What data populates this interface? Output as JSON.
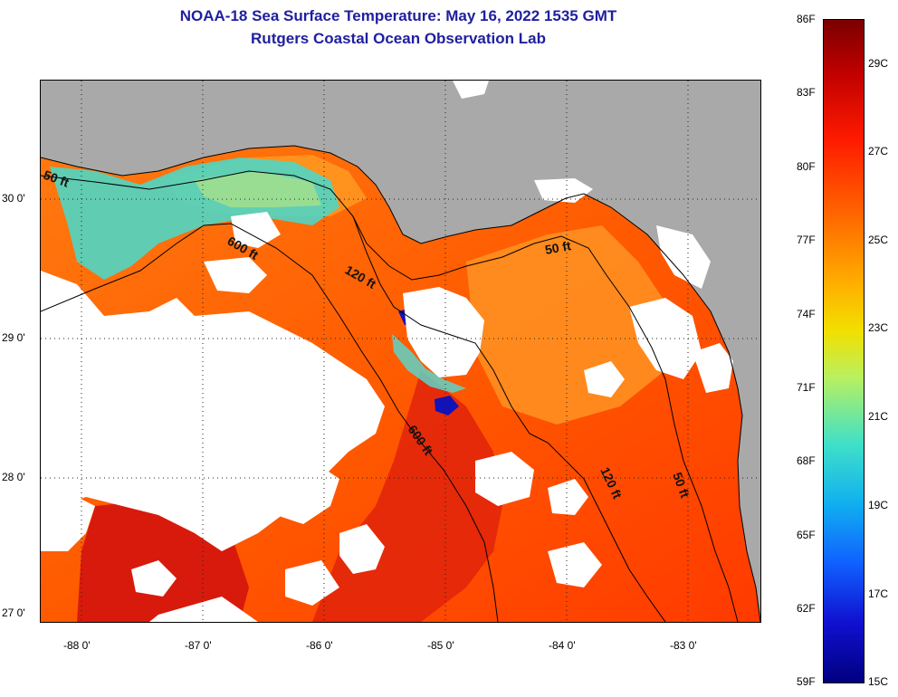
{
  "title": {
    "line1": "NOAA-18 Sea Surface Temperature:  May 16, 2022 1535 GMT",
    "line2": "Rutgers Coastal Ocean Observation Lab"
  },
  "map": {
    "lat_labels": [
      "30 0'",
      "29 0'",
      "28 0'",
      "27 0'"
    ],
    "lon_labels": [
      "-88 0'",
      "-87 0'",
      "-86 0'",
      "-85 0'",
      "-84 0'",
      "-83 0'"
    ],
    "contour_labels": [
      "50 ft",
      "600 ft",
      "120 ft",
      "50 ft",
      "600 ft",
      "120 ft",
      "50 ft"
    ],
    "colors": {
      "land": "#a9a9a9",
      "cloud": "#ffffff",
      "warm": "#ff4f00",
      "hot": "#e3170a",
      "orange": "#ff8a1a",
      "cool": "#3fd0c0",
      "cold": "#1010b0"
    }
  },
  "colorbar": {
    "f_labels": [
      "86F",
      "83F",
      "80F",
      "77F",
      "74F",
      "71F",
      "68F",
      "65F",
      "62F",
      "59F"
    ],
    "c_labels": [
      "29C",
      "27C",
      "25C",
      "23C",
      "21C",
      "19C",
      "17C",
      "15C"
    ]
  }
}
